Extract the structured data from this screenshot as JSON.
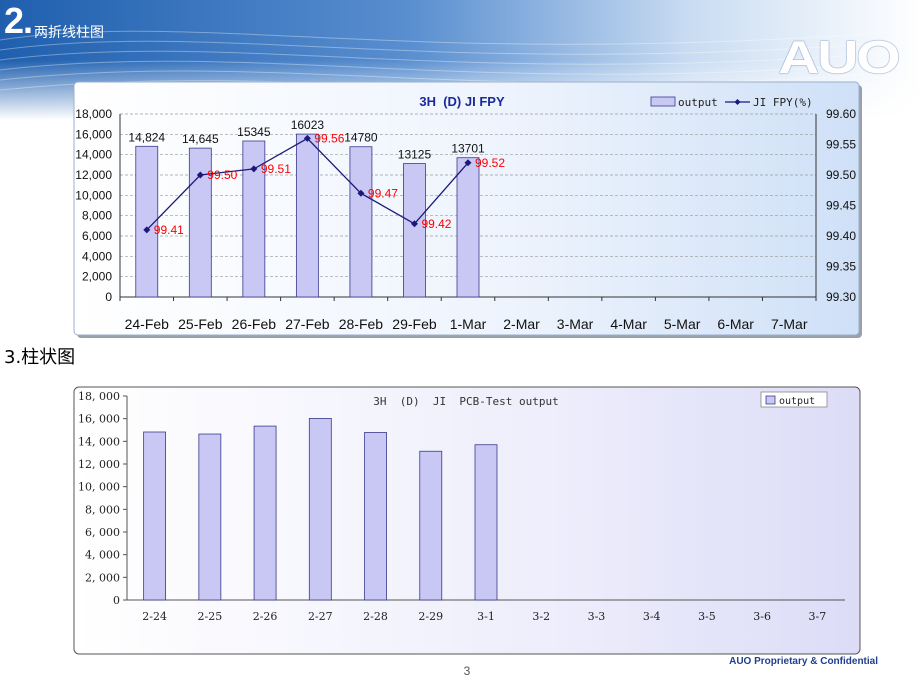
{
  "header": {
    "section_number": "2.",
    "section_title": "两折线柱图",
    "logo": "AUO"
  },
  "section3_title": "3.柱状图",
  "footer": {
    "page_number": "3",
    "confidential": "AUO Proprietary & Confidential"
  },
  "colors": {
    "banner_dark": "#1f5fae",
    "bar_fill": "#c9c8f5",
    "bar_stroke": "#3a3a8a",
    "line": "#1a1a7a",
    "point_label": "#ff0000",
    "chart2_bg": "#eeeefc"
  },
  "chart_data": [
    {
      "type": "bar",
      "title": "3H  (D) JI FPY",
      "categories": [
        "24-Feb",
        "25-Feb",
        "26-Feb",
        "27-Feb",
        "28-Feb",
        "29-Feb",
        "1-Mar",
        "2-Mar",
        "3-Mar",
        "4-Mar",
        "5-Mar",
        "6-Mar",
        "7-Mar"
      ],
      "series": [
        {
          "name": "output",
          "type": "bar",
          "axis": "left",
          "values": [
            14824,
            14645,
            15345,
            16023,
            14780,
            13125,
            13701,
            null,
            null,
            null,
            null,
            null,
            null
          ],
          "labels": [
            "14,824",
            "14,645",
            "15345",
            "16023",
            "14780",
            "13125",
            "13701",
            "",
            "",
            "",
            "",
            "",
            ""
          ]
        },
        {
          "name": "JI FPY(%)",
          "type": "line",
          "axis": "right",
          "values": [
            99.41,
            99.5,
            99.51,
            99.56,
            99.47,
            99.42,
            99.52,
            null,
            null,
            null,
            null,
            null,
            null
          ],
          "labels": [
            "99.41",
            "99.50",
            "99.51",
            "99.56",
            "99.47",
            "99.42",
            "99.52",
            "",
            "",
            "",
            "",
            "",
            ""
          ]
        }
      ],
      "ylim": [
        0,
        18000
      ],
      "y_ticks": [
        "0",
        "2,000",
        "4,000",
        "6,000",
        "8,000",
        "10,000",
        "12,000",
        "14,000",
        "16,000",
        "18,000"
      ],
      "y2lim": [
        99.3,
        99.6
      ],
      "y2_ticks": [
        "99.30",
        "99.35",
        "99.40",
        "99.45",
        "99.50",
        "99.55",
        "99.60"
      ],
      "grid": true,
      "legend": "top-right"
    },
    {
      "type": "bar",
      "title": "3H  (D)  JI  PCB-Test output",
      "categories": [
        "2-24",
        "2-25",
        "2-26",
        "2-27",
        "2-28",
        "2-29",
        "3-1",
        "3-2",
        "3-3",
        "3-4",
        "3-5",
        "3-6",
        "3-7"
      ],
      "series": [
        {
          "name": "output",
          "values": [
            14824,
            14645,
            15345,
            16023,
            14780,
            13125,
            13701,
            null,
            null,
            null,
            null,
            null,
            null
          ]
        }
      ],
      "ylim": [
        0,
        18000
      ],
      "y_ticks": [
        "0",
        "2, 000",
        "4, 000",
        "6, 000",
        "8, 000",
        "10, 000",
        "12, 000",
        "14, 000",
        "16, 000",
        "18, 000"
      ],
      "grid": false,
      "legend": "top-right"
    }
  ]
}
